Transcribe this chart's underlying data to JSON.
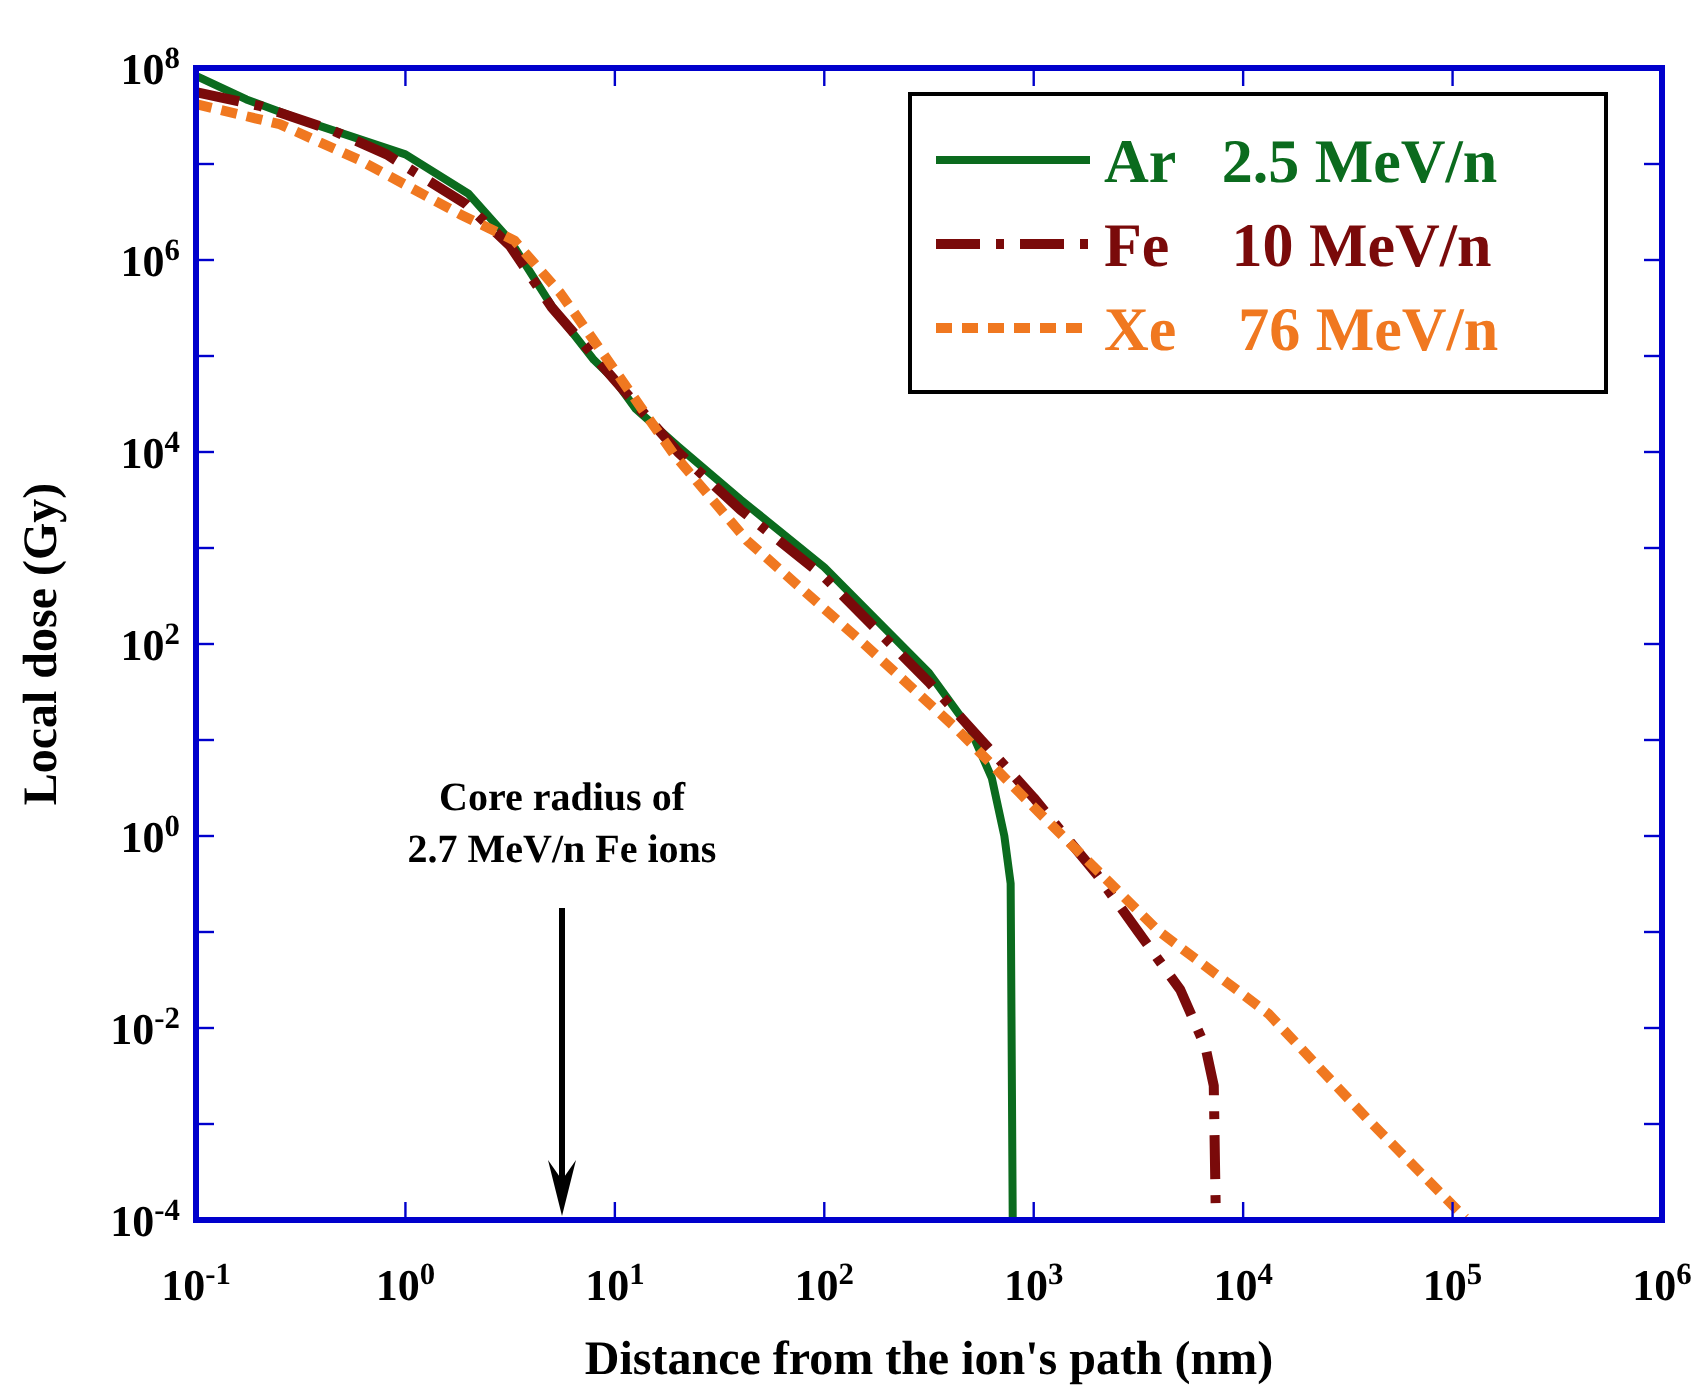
{
  "chart_data": {
    "type": "line",
    "xlabel": "Distance from the ion's path (nm)",
    "ylabel": "Local dose (Gy)",
    "log": "xy",
    "xlim": [
      0.1,
      1000000
    ],
    "ylim": [
      0.0001,
      100000000
    ],
    "xticks": [
      {
        "value": 0.1,
        "label": "10$^{-1}$"
      },
      {
        "value": 1,
        "label": "10$^{0}$"
      },
      {
        "value": 10,
        "label": "10$^{1}$"
      },
      {
        "value": 100,
        "label": "10$^{2}$"
      },
      {
        "value": 1000,
        "label": "10$^{3}$"
      },
      {
        "value": 10000,
        "label": "10$^{4}$"
      },
      {
        "value": 100000,
        "label": "10$^{5}$"
      },
      {
        "value": 1000000,
        "label": "10$^{6}$"
      }
    ],
    "yticks": [
      {
        "value": 0.0001,
        "label": "10$^{-4}$"
      },
      {
        "value": 0.001,
        "label": null
      },
      {
        "value": 0.01,
        "label": "10$^{-2}$"
      },
      {
        "value": 0.1,
        "label": null
      },
      {
        "value": 1,
        "label": "10$^{0}$"
      },
      {
        "value": 10,
        "label": null
      },
      {
        "value": 100,
        "label": "10$^{2}$"
      },
      {
        "value": 1000,
        "label": null
      },
      {
        "value": 10000,
        "label": "10$^{4}$"
      },
      {
        "value": 100000,
        "label": null
      },
      {
        "value": 1000000,
        "label": "10$^{6}$"
      },
      {
        "value": 10000000,
        "label": null
      },
      {
        "value": 100000000,
        "label": "10$^{8}$"
      }
    ],
    "grid": false,
    "legend": "top right",
    "marker": "none",
    "annotations": [
      "Core radius of\n2.7 MeV/n Fe ions"
    ],
    "series": [
      {
        "name": "Ar   2.5 MeV/n",
        "color": "#0b6b1e",
        "line_style": "solid",
        "x": [
          0.1,
          0.174,
          0.316,
          1,
          2,
          3.16,
          5,
          7.94,
          10,
          12.6,
          20,
          39.8,
          100,
          316,
          501,
          631,
          724,
          776,
          794
        ],
        "values": [
          83000000,
          47000000,
          29000000,
          12600000,
          4900000,
          1600000,
          330000,
          91000,
          56000,
          28000,
          11500,
          3200,
          630,
          50,
          12.6,
          4,
          1,
          0.32,
          0.0001
        ]
      },
      {
        "name": "Fe    10 MeV/n",
        "color": "#7a0a0a",
        "line_style": "dashed",
        "x": [
          0.1,
          0.204,
          0.457,
          0.813,
          1.95,
          3.16,
          5,
          10,
          20,
          39.8,
          100,
          316,
          562,
          1000,
          2000,
          3160,
          5010,
          6610,
          7240,
          7410
        ],
        "values": [
          56000000,
          40000000,
          22000000,
          12600000,
          3800000,
          1400000,
          320000,
          56000,
          10000,
          2500,
          500,
          40,
          10,
          2.5,
          0.4,
          0.1,
          0.025,
          0.0063,
          0.0025,
          0.0001
        ]
      },
      {
        "name": "Xe    76 MeV/n",
        "color": "#f07820",
        "line_style": "dotted",
        "x": [
          0.1,
          0.251,
          0.603,
          1.82,
          3.31,
          5.5,
          10,
          19.1,
          42.7,
          155,
          427,
          977,
          3890,
          13200,
          38900,
          115000
        ],
        "values": [
          42000000,
          26000000,
          11000000,
          3000000,
          1600000,
          450000,
          71000,
          9500,
          1200,
          100,
          13.2,
          2.1,
          0.105,
          0.0141,
          0.00115,
          0.000105
        ]
      }
    ]
  }
}
